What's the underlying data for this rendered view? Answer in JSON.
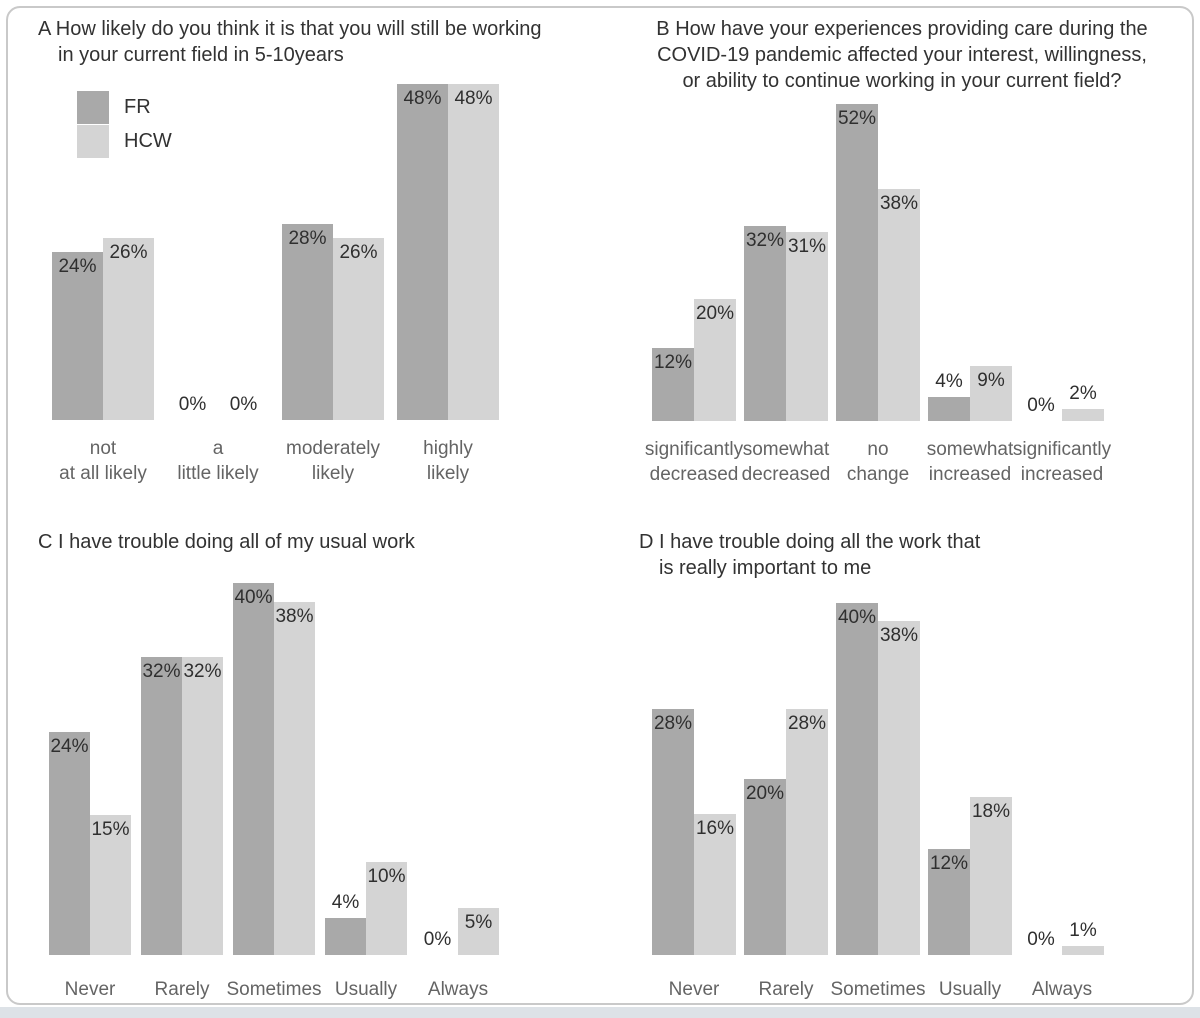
{
  "card": {
    "background": "#ffffff",
    "border_color": "#c9c9c9",
    "bottom_strip_color": "#dde2e7"
  },
  "legend": {
    "items": [
      {
        "label": "FR",
        "color": "#a9a9a9"
      },
      {
        "label": "HCW",
        "color": "#d4d4d4"
      }
    ]
  },
  "series_colors": {
    "FR": "#a9a9a9",
    "HCW": "#d4d4d4"
  },
  "value_suffix": "%",
  "chart_data": [
    {
      "panel": "A",
      "type": "bar",
      "title": "A  How likely do you think it is that you will still be working\nin your current field in 5-10years",
      "title_align": "left-hanging",
      "categories": [
        "not\nat all likely",
        "a\nlittle likely",
        "moderately\nlikely",
        "highly\nlikely"
      ],
      "series": [
        {
          "name": "FR",
          "values": [
            24,
            0,
            28,
            48
          ]
        },
        {
          "name": "HCW",
          "values": [
            26,
            0,
            26,
            48
          ]
        }
      ],
      "ylim": [
        0,
        52
      ],
      "grid": false,
      "legend_position": "upper-left"
    },
    {
      "panel": "B",
      "type": "bar",
      "title": "B  How have your experiences providing care during the\nCOVID-19 pandemic affected your interest, willingness,\nor ability to continue working in your current field?",
      "title_align": "center",
      "categories": [
        "significantly\ndecreased",
        "somewhat\ndecreased",
        "no\nchange",
        "somewhat\nincreased",
        "significantly\nincreased"
      ],
      "series": [
        {
          "name": "FR",
          "values": [
            12,
            32,
            52,
            4,
            0
          ]
        },
        {
          "name": "HCW",
          "values": [
            20,
            31,
            38,
            9,
            2
          ]
        }
      ],
      "ylim": [
        0,
        56
      ],
      "grid": false,
      "legend_position": "none"
    },
    {
      "panel": "C",
      "type": "bar",
      "title": "C  I have trouble doing all of my usual work",
      "title_align": "left-hanging",
      "categories": [
        "Never",
        "Rarely",
        "Sometimes",
        "Usually",
        "Always"
      ],
      "series": [
        {
          "name": "FR",
          "values": [
            24,
            32,
            40,
            4,
            0
          ]
        },
        {
          "name": "HCW",
          "values": [
            15,
            32,
            38,
            10,
            5
          ]
        }
      ],
      "ylim": [
        0,
        41
      ],
      "grid": false,
      "legend_position": "none"
    },
    {
      "panel": "D",
      "type": "bar",
      "title": "D  I have trouble doing all the work that\nis really important to me",
      "title_align": "left-hanging",
      "categories": [
        "Never",
        "Rarely",
        "Sometimes",
        "Usually",
        "Always"
      ],
      "series": [
        {
          "name": "FR",
          "values": [
            28,
            20,
            40,
            12,
            0
          ]
        },
        {
          "name": "HCW",
          "values": [
            16,
            28,
            38,
            18,
            1
          ]
        }
      ],
      "ylim": [
        0,
        41
      ],
      "grid": false,
      "legend_position": "none"
    }
  ]
}
